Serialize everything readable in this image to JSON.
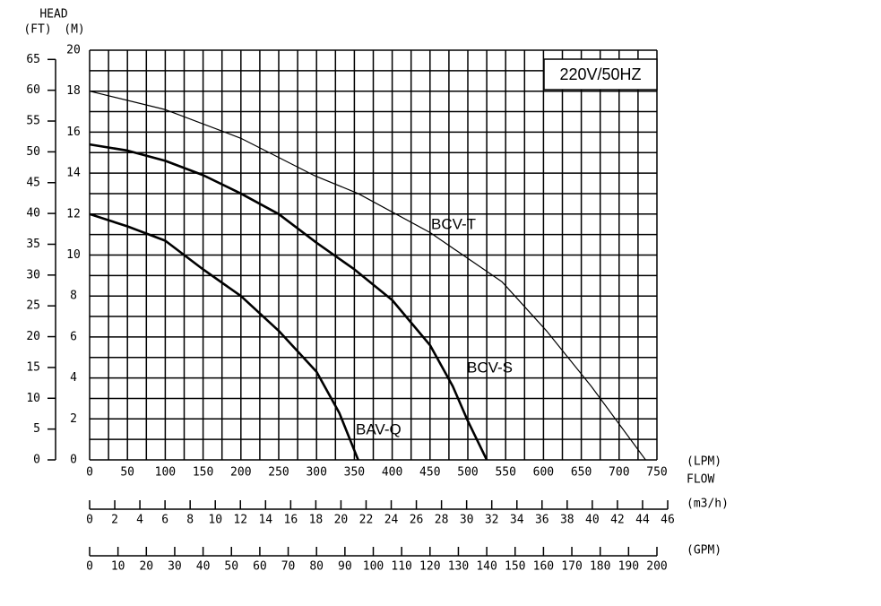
{
  "chart_data": {
    "type": "line",
    "y_label_top": "HEAD",
    "y2_label": "(FT)",
    "y_label": "(M)",
    "x_label": "(LPM)",
    "x_label_2": "FLOW",
    "x2_label": "(m3/h)",
    "x3_label": "(GPM)",
    "annotation": "220V/50HZ",
    "xlim": [
      0,
      750
    ],
    "xticks": [
      0,
      50,
      100,
      150,
      200,
      250,
      300,
      350,
      400,
      450,
      500,
      550,
      600,
      650,
      700,
      750
    ],
    "minor_xticks": [
      25,
      75,
      125,
      175,
      225,
      275,
      325,
      375,
      425,
      475,
      525,
      575,
      625,
      675,
      725
    ],
    "ylim": [
      0,
      20
    ],
    "yticks": [
      0,
      2,
      4,
      6,
      8,
      10,
      12,
      14,
      16,
      18,
      20
    ],
    "minor_yticks": [
      1,
      3,
      5,
      7,
      9,
      11,
      13,
      15,
      17,
      19
    ],
    "y2lim": [
      0,
      66.5
    ],
    "y2ticks": [
      0,
      5,
      10,
      15,
      20,
      25,
      30,
      35,
      40,
      45,
      50,
      55,
      60,
      65
    ],
    "x2lim": [
      0,
      46
    ],
    "x2ticks": [
      0,
      2,
      4,
      6,
      8,
      10,
      12,
      14,
      16,
      18,
      20,
      22,
      24,
      26,
      28,
      30,
      32,
      34,
      36,
      38,
      40,
      42,
      44,
      46
    ],
    "x3lim": [
      0,
      200
    ],
    "x3ticks": [
      0,
      10,
      20,
      30,
      40,
      50,
      60,
      70,
      80,
      90,
      100,
      110,
      120,
      130,
      140,
      150,
      160,
      170,
      180,
      190,
      200
    ],
    "grid": true,
    "series": [
      {
        "name": "BCV-T",
        "color": "#000000",
        "linewidth": 1.2,
        "x": [
          0,
          100,
          200,
          296,
          355,
          450,
          545,
          604,
          663,
          735
        ],
        "values": [
          18,
          17.1,
          15.7,
          13.9,
          13.0,
          11.1,
          8.7,
          6.3,
          3.6,
          0
        ]
      },
      {
        "name": "BCV-S",
        "color": "#000000",
        "linewidth": 2.6,
        "x": [
          0,
          50,
          100,
          150,
          200,
          250,
          300,
          350,
          400,
          450,
          480,
          500,
          525
        ],
        "values": [
          15.4,
          15.1,
          14.6,
          13.9,
          13.0,
          12.0,
          10.6,
          9.3,
          7.8,
          5.6,
          3.6,
          1.9,
          0
        ]
      },
      {
        "name": "BAV-Q",
        "color": "#000000",
        "linewidth": 2.6,
        "x": [
          0,
          50,
          100,
          150,
          200,
          250,
          300,
          330,
          355
        ],
        "values": [
          12,
          11.4,
          10.7,
          9.3,
          8.0,
          6.3,
          4.3,
          2.3,
          0
        ]
      }
    ]
  }
}
